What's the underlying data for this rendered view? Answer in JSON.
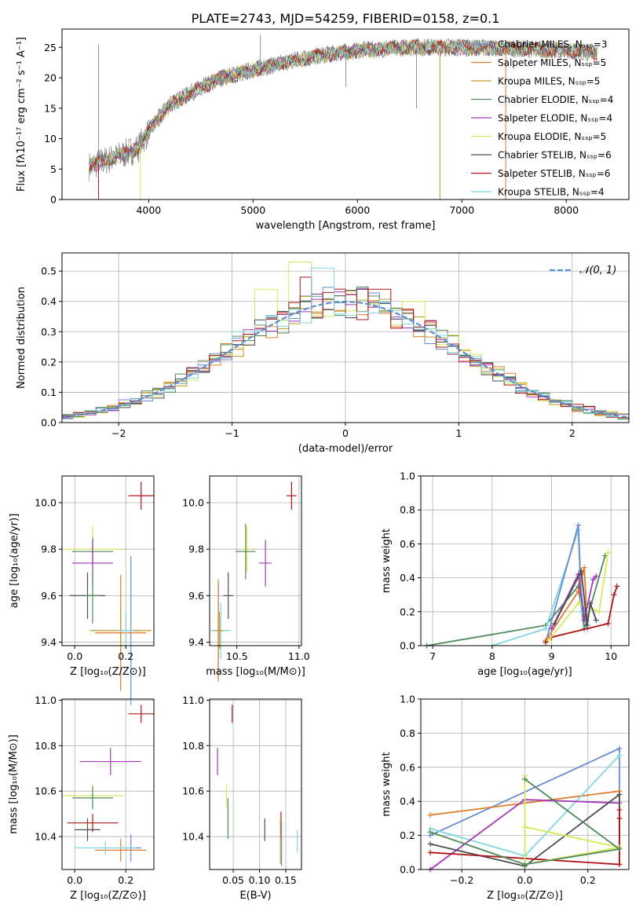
{
  "figure_title": "PLATE=2743, MJD=54259, FIBERID=0158, z=0.1",
  "colors": {
    "chabrier_miles": "#6a8bd2",
    "salpeter_miles": "#e07a2e",
    "kroupa_miles": "#c29a1f",
    "chabrier_elodie": "#4f8a5a",
    "salpeter_elodie": "#a23ab5",
    "kroupa_elodie": "#d8e85a",
    "chabrier_stelib": "#4d4d4d",
    "salpeter_stelib": "#b01414",
    "kroupa_stelib": "#7fd8e0",
    "gaussian": "#5a8fd6",
    "grid": "#b0b0b0"
  },
  "chart_data": [
    {
      "id": "spectrum",
      "type": "line",
      "xlabel": "wavelength [Angstrom, rest frame]",
      "ylabel": "Flux [fλ10⁻¹⁷ erg cm⁻² s⁻¹ A⁻¹]",
      "xlim": [
        3170,
        8600
      ],
      "ylim": [
        0,
        28
      ],
      "xticks": [
        "4000",
        "5000",
        "6000",
        "7000",
        "8000"
      ],
      "yticks": [
        "0",
        "5",
        "10",
        "15",
        "20",
        "25"
      ],
      "legend": [
        {
          "label": "Chabrier MILES, Nₛₛₚ=3",
          "color_key": "chabrier_miles"
        },
        {
          "label": "Salpeter MILES, Nₛₛₚ=5",
          "color_key": "salpeter_miles"
        },
        {
          "label": "Kroupa MILES, Nₛₛₚ=5",
          "color_key": "kroupa_miles"
        },
        {
          "label": "Chabrier ELODIE, Nₛₛₚ=4",
          "color_key": "chabrier_elodie"
        },
        {
          "label": "Salpeter ELODIE, Nₛₛₚ=4",
          "color_key": "salpeter_elodie"
        },
        {
          "label": "Kroupa ELODIE, Nₛₛₚ=5",
          "color_key": "kroupa_elodie"
        },
        {
          "label": "Chabrier STELIB, Nₛₛₚ=6",
          "color_key": "chabrier_stelib"
        },
        {
          "label": "Salpeter STELIB, Nₛₛₚ=6",
          "color_key": "salpeter_stelib"
        },
        {
          "label": "Kroupa STELIB, Nₛₛₚ=4",
          "color_key": "kroupa_stelib"
        }
      ],
      "continuum": [
        [
          3430,
          5.5
        ],
        [
          3700,
          7
        ],
        [
          3900,
          8.5
        ],
        [
          4050,
          12.5
        ],
        [
          4200,
          15.5
        ],
        [
          4400,
          17.5
        ],
        [
          4700,
          20
        ],
        [
          5000,
          21.3
        ],
        [
          5300,
          22.5
        ],
        [
          5600,
          23.5
        ],
        [
          6000,
          24.5
        ],
        [
          6500,
          25
        ],
        [
          7000,
          25
        ],
        [
          7500,
          24.8
        ],
        [
          8000,
          24.5
        ],
        [
          8300,
          24
        ]
      ],
      "wavelength_range": [
        3430,
        8300
      ],
      "data_spikes": [
        [
          3520,
          25.5
        ],
        [
          5070,
          27
        ],
        [
          5890,
          18.5
        ],
        [
          6565,
          15
        ]
      ],
      "model_drops": [
        {
          "x": 3520,
          "y": 0,
          "color_key": "salpeter_stelib"
        },
        {
          "x": 3920,
          "y": 0,
          "color_key": "kroupa_elodie"
        },
        {
          "x": 6790,
          "y": 0,
          "color_key": "kroupa_miles"
        },
        {
          "x": 7420,
          "y": 0,
          "color_key": "salpeter_miles"
        }
      ]
    },
    {
      "id": "residuals",
      "type": "step-histogram",
      "xlabel": "(data-model)/error",
      "ylabel": "Normed distribution",
      "xlim": [
        -2.5,
        2.5
      ],
      "ylim": [
        0,
        0.56
      ],
      "xticks": [
        "−2",
        "−1",
        "0",
        "1",
        "2"
      ],
      "yticks": [
        "0.0",
        "0.1",
        "0.2",
        "0.3",
        "0.4",
        "0.5"
      ],
      "bins": 50,
      "gaussian_label": "𝒩(0, 1)",
      "peak_bars": {
        "kroupa_elodie": [
          [
            -0.4,
            0.53
          ],
          [
            -0.7,
            0.44
          ],
          [
            0.6,
            0.4
          ]
        ],
        "kroupa_stelib": [
          [
            -0.2,
            0.51
          ],
          [
            -0.9,
            0.3
          ]
        ],
        "salpeter_stelib": [
          [
            -0.35,
            0.48
          ],
          [
            0.3,
            0.44
          ]
        ]
      }
    },
    {
      "id": "age_vs_Z",
      "type": "errorbar",
      "xlabel": "Z [log₁₀(Z/Z⊙)]",
      "ylabel": "age  [log₁₀(age/yr)]",
      "xlim": [
        -0.05,
        0.31
      ],
      "ylim": [
        9.385,
        10.115
      ],
      "xticks": [
        "0.0",
        "0.2"
      ],
      "yticks": [
        "9.4",
        "9.6",
        "9.8",
        "10.0"
      ],
      "points": [
        {
          "c": "salpeter_stelib",
          "x": 0.26,
          "y": 10.03,
          "xe": 0.05,
          "ye": 0.06
        },
        {
          "c": "kroupa_elodie",
          "x": 0.07,
          "y": 9.8,
          "xe": 0.12,
          "ye": 0.1
        },
        {
          "c": "chabrier_elodie",
          "x": 0.07,
          "y": 9.79,
          "xe": 0.08,
          "ye": 0.06
        },
        {
          "c": "salpeter_elodie",
          "x": 0.07,
          "y": 9.74,
          "xe": 0.08,
          "ye": 0.1
        },
        {
          "c": "chabrier_stelib",
          "x": 0.05,
          "y": 9.6,
          "xe": 0.07,
          "ye": 0.1
        },
        {
          "c": "chabrier_elodie",
          "x": 0.07,
          "y": 9.6,
          "xe": 0.03,
          "ye": 0.12
        },
        {
          "c": "chabrier_miles",
          "x": 0.22,
          "y": 9.45,
          "xe": 0.04,
          "ye": 0.32
        },
        {
          "c": "salpeter_miles",
          "x": 0.18,
          "y": 9.44,
          "xe": 0.1,
          "ye": 0.25
        },
        {
          "c": "kroupa_miles",
          "x": 0.18,
          "y": 9.45,
          "xe": 0.12,
          "ye": 0.1
        },
        {
          "c": "kroupa_stelib",
          "x": 0.2,
          "y": 9.45,
          "xe": 0.03,
          "ye": 0.08
        }
      ]
    },
    {
      "id": "age_vs_mass",
      "type": "errorbar",
      "xlabel": "mass [log₁₀(M/M⊙)]",
      "ylabel": "",
      "xlim": [
        10.28,
        11.02
      ],
      "ylim": [
        9.385,
        10.115
      ],
      "xticks": [
        "10.5",
        "11.0"
      ],
      "yticks": [
        "9.4",
        "9.6",
        "9.8",
        "10.0"
      ],
      "points": [
        {
          "c": "salpeter_stelib",
          "x": 10.94,
          "y": 10.03,
          "xe": 0.04,
          "ye": 0.06
        },
        {
          "c": "kroupa_elodie",
          "x": 10.58,
          "y": 9.8,
          "xe": 0.04,
          "ye": 0.1
        },
        {
          "c": "chabrier_elodie",
          "x": 10.57,
          "y": 9.79,
          "xe": 0.08,
          "ye": 0.12
        },
        {
          "c": "salpeter_elodie",
          "x": 10.73,
          "y": 9.74,
          "xe": 0.05,
          "ye": 0.1
        },
        {
          "c": "chabrier_stelib",
          "x": 10.43,
          "y": 9.6,
          "xe": 0.04,
          "ye": 0.1
        },
        {
          "c": "chabrier_miles",
          "x": 10.35,
          "y": 9.45,
          "xe": 0.06,
          "ye": 0.2
        },
        {
          "c": "salpeter_miles",
          "x": 10.35,
          "y": 9.45,
          "xe": 0.05,
          "ye": 0.22
        },
        {
          "c": "kroupa_stelib",
          "x": 10.37,
          "y": 9.45,
          "xe": 0.08,
          "ye": 0.12
        },
        {
          "c": "kroupa_miles",
          "x": 10.36,
          "y": 9.45,
          "xe": 0.03,
          "ye": 0.08
        }
      ]
    },
    {
      "id": "weight_vs_age",
      "type": "line",
      "xlabel": "age  [log₁₀(age/yr)]",
      "ylabel": "mass weight",
      "xlim": [
        6.8,
        10.3
      ],
      "ylim": [
        0,
        1
      ],
      "xticks": [
        "7",
        "8",
        "9",
        "10"
      ],
      "yticks": [
        "0.0",
        "0.2",
        "0.4",
        "0.6",
        "0.8",
        "1.0"
      ],
      "series": [
        {
          "c": "chabrier_elodie",
          "x": [
            6.9,
            8.9,
            9.45,
            9.55,
            9.9
          ],
          "y": [
            0.0,
            0.12,
            0.35,
            0.1,
            0.53
          ]
        },
        {
          "c": "kroupa_stelib",
          "x": [
            8.0,
            8.9,
            9.45,
            9.5,
            9.6
          ],
          "y": [
            0.0,
            0.1,
            0.68,
            0.2,
            0.15
          ]
        },
        {
          "c": "chabrier_miles",
          "x": [
            8.9,
            9.45,
            9.5,
            9.6
          ],
          "y": [
            0.02,
            0.71,
            0.3,
            0.1
          ]
        },
        {
          "c": "salpeter_miles",
          "x": [
            8.9,
            9.45,
            9.55,
            9.6
          ],
          "y": [
            0.03,
            0.32,
            0.46,
            0.12
          ]
        },
        {
          "c": "salpeter_stelib",
          "x": [
            8.9,
            9.0,
            9.95,
            10.05,
            10.1
          ],
          "y": [
            0.02,
            0.05,
            0.13,
            0.3,
            0.35
          ]
        },
        {
          "c": "kroupa_elodie",
          "x": [
            8.95,
            9.45,
            9.8,
            9.95
          ],
          "y": [
            0.03,
            0.25,
            0.2,
            0.55
          ]
        },
        {
          "c": "salpeter_elodie",
          "x": [
            9.0,
            9.45,
            9.55,
            9.7,
            9.75
          ],
          "y": [
            0.1,
            0.42,
            0.15,
            0.39,
            0.41
          ]
        },
        {
          "c": "chabrier_stelib",
          "x": [
            9.05,
            9.5,
            9.6,
            9.65,
            9.75
          ],
          "y": [
            0.13,
            0.44,
            0.12,
            0.25,
            0.15
          ]
        }
      ]
    },
    {
      "id": "mass_vs_Z",
      "type": "errorbar",
      "xlabel": "Z [log₁₀(Z/Z⊙)]",
      "ylabel": "mass [log₁₀(M/M⊙)]",
      "xlim": [
        -0.05,
        0.31
      ],
      "ylim": [
        10.255,
        11.005
      ],
      "xticks": [
        "0.0",
        "0.2"
      ],
      "yticks": [
        "10.4",
        "10.6",
        "10.8",
        "11.0"
      ],
      "points": [
        {
          "c": "salpeter_stelib",
          "x": 0.26,
          "y": 10.94,
          "xe": 0.05,
          "ye": 0.04
        },
        {
          "c": "salpeter_elodie",
          "x": 0.14,
          "y": 10.73,
          "xe": 0.12,
          "ye": 0.06
        },
        {
          "c": "kroupa_elodie",
          "x": 0.07,
          "y": 10.58,
          "xe": 0.12,
          "ye": 0.05
        },
        {
          "c": "chabrier_elodie",
          "x": 0.07,
          "y": 10.57,
          "xe": 0.08,
          "ye": 0.05
        },
        {
          "c": "chabrier_stelib",
          "x": 0.05,
          "y": 10.43,
          "xe": 0.05,
          "ye": 0.05
        },
        {
          "c": "salpeter_stelib",
          "x": 0.07,
          "y": 10.46,
          "xe": 0.1,
          "ye": 0.04
        },
        {
          "c": "chabrier_miles",
          "x": 0.22,
          "y": 10.35,
          "xe": 0.04,
          "ye": 0.06
        },
        {
          "c": "salpeter_miles",
          "x": 0.18,
          "y": 10.34,
          "xe": 0.1,
          "ye": 0.05
        },
        {
          "c": "kroupa_stelib",
          "x": 0.12,
          "y": 10.35,
          "xe": 0.12,
          "ye": 0.03
        }
      ]
    },
    {
      "id": "mass_vs_EBV",
      "type": "errorbar",
      "xlabel": "E(B-V)",
      "ylabel": "",
      "xlim": [
        0.005,
        0.18
      ],
      "ylim": [
        10.255,
        11.005
      ],
      "xticks": [
        "0.05",
        "0.10",
        "0.15"
      ],
      "yticks": [
        "10.4",
        "10.6",
        "10.8",
        "11.0"
      ],
      "points": [
        {
          "c": "salpeter_stelib",
          "x": 0.048,
          "y": 10.94,
          "xe": 0.0,
          "ye": 0.04
        },
        {
          "c": "salpeter_elodie",
          "x": 0.02,
          "y": 10.73,
          "xe": 0.0,
          "ye": 0.06
        },
        {
          "c": "kroupa_elodie",
          "x": 0.037,
          "y": 10.58,
          "xe": 0.0,
          "ye": 0.05
        },
        {
          "c": "chabrier_elodie",
          "x": 0.04,
          "y": 10.48,
          "xe": 0.0,
          "ye": 0.09
        },
        {
          "c": "chabrier_stelib",
          "x": 0.11,
          "y": 10.43,
          "xe": 0.0,
          "ye": 0.05
        },
        {
          "c": "salpeter_stelib",
          "x": 0.141,
          "y": 10.45,
          "xe": 0.0,
          "ye": 0.06
        },
        {
          "c": "kroupa_miles",
          "x": 0.14,
          "y": 10.38,
          "xe": 0.0,
          "ye": 0.1
        },
        {
          "c": "chabrier_miles",
          "x": 0.142,
          "y": 10.37,
          "xe": 0.0,
          "ye": 0.1
        },
        {
          "c": "kroupa_stelib",
          "x": 0.172,
          "y": 10.38,
          "xe": 0.0,
          "ye": 0.05
        }
      ]
    },
    {
      "id": "weight_vs_Z",
      "type": "line",
      "xlabel": "Z [log₁₀(Z/Z⊙)]",
      "ylabel": "mass weight",
      "xlim": [
        -0.33,
        0.33
      ],
      "ylim": [
        0,
        1
      ],
      "xticks": [
        "−0.2",
        "0.0",
        "0.2"
      ],
      "yticks": [
        "0.0",
        "0.2",
        "0.4",
        "0.6",
        "0.8",
        "1.0"
      ],
      "series": [
        {
          "c": "chabrier_miles",
          "x": [
            -0.3,
            0.3,
            0.3
          ],
          "y": [
            0.2,
            0.71,
            0.46
          ]
        },
        {
          "c": "salpeter_miles",
          "x": [
            -0.3,
            0.3,
            0.3,
            0.3
          ],
          "y": [
            0.32,
            0.46,
            0.12,
            0.03
          ]
        },
        {
          "c": "kroupa_stelib",
          "x": [
            -0.3,
            0.0,
            0.3
          ],
          "y": [
            0.24,
            0.08,
            0.67
          ]
        },
        {
          "c": "salpeter_elodie",
          "x": [
            -0.3,
            0.0,
            0.3
          ],
          "y": [
            0.0,
            0.41,
            0.39
          ]
        },
        {
          "c": "chabrier_stelib",
          "x": [
            -0.3,
            0.0,
            0.3,
            0.3
          ],
          "y": [
            0.15,
            0.02,
            0.44,
            0.13
          ]
        },
        {
          "c": "salpeter_stelib",
          "x": [
            -0.3,
            0.3,
            0.3,
            0.3,
            0.3
          ],
          "y": [
            0.1,
            0.03,
            0.35,
            0.3,
            0.13
          ]
        },
        {
          "c": "kroupa_elodie",
          "x": [
            0.0,
            0.0,
            0.3,
            0.0,
            0.0
          ],
          "y": [
            0.53,
            0.25,
            0.13,
            0.03,
            0.55
          ]
        },
        {
          "c": "chabrier_elodie",
          "x": [
            -0.3,
            0.0,
            0.3,
            0.0
          ],
          "y": [
            0.22,
            0.03,
            0.12,
            0.53
          ]
        }
      ]
    }
  ]
}
